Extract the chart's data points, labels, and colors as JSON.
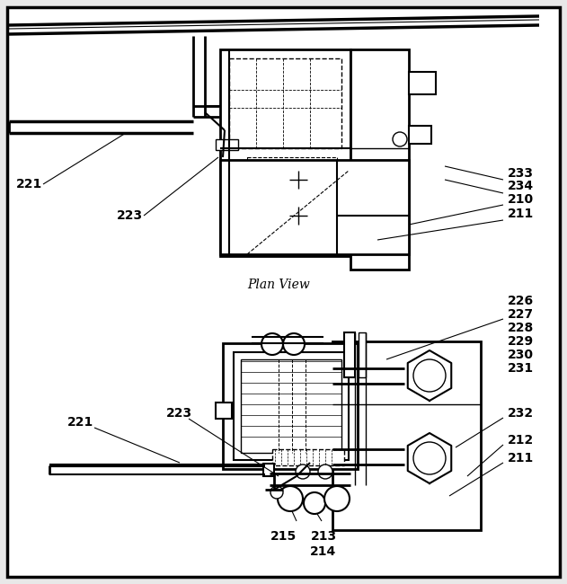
{
  "bg_color": "#e8e8e8",
  "border_color": "#000000",
  "figsize": [
    6.31,
    6.5
  ],
  "dpi": 100,
  "white_bg": "#ffffff"
}
